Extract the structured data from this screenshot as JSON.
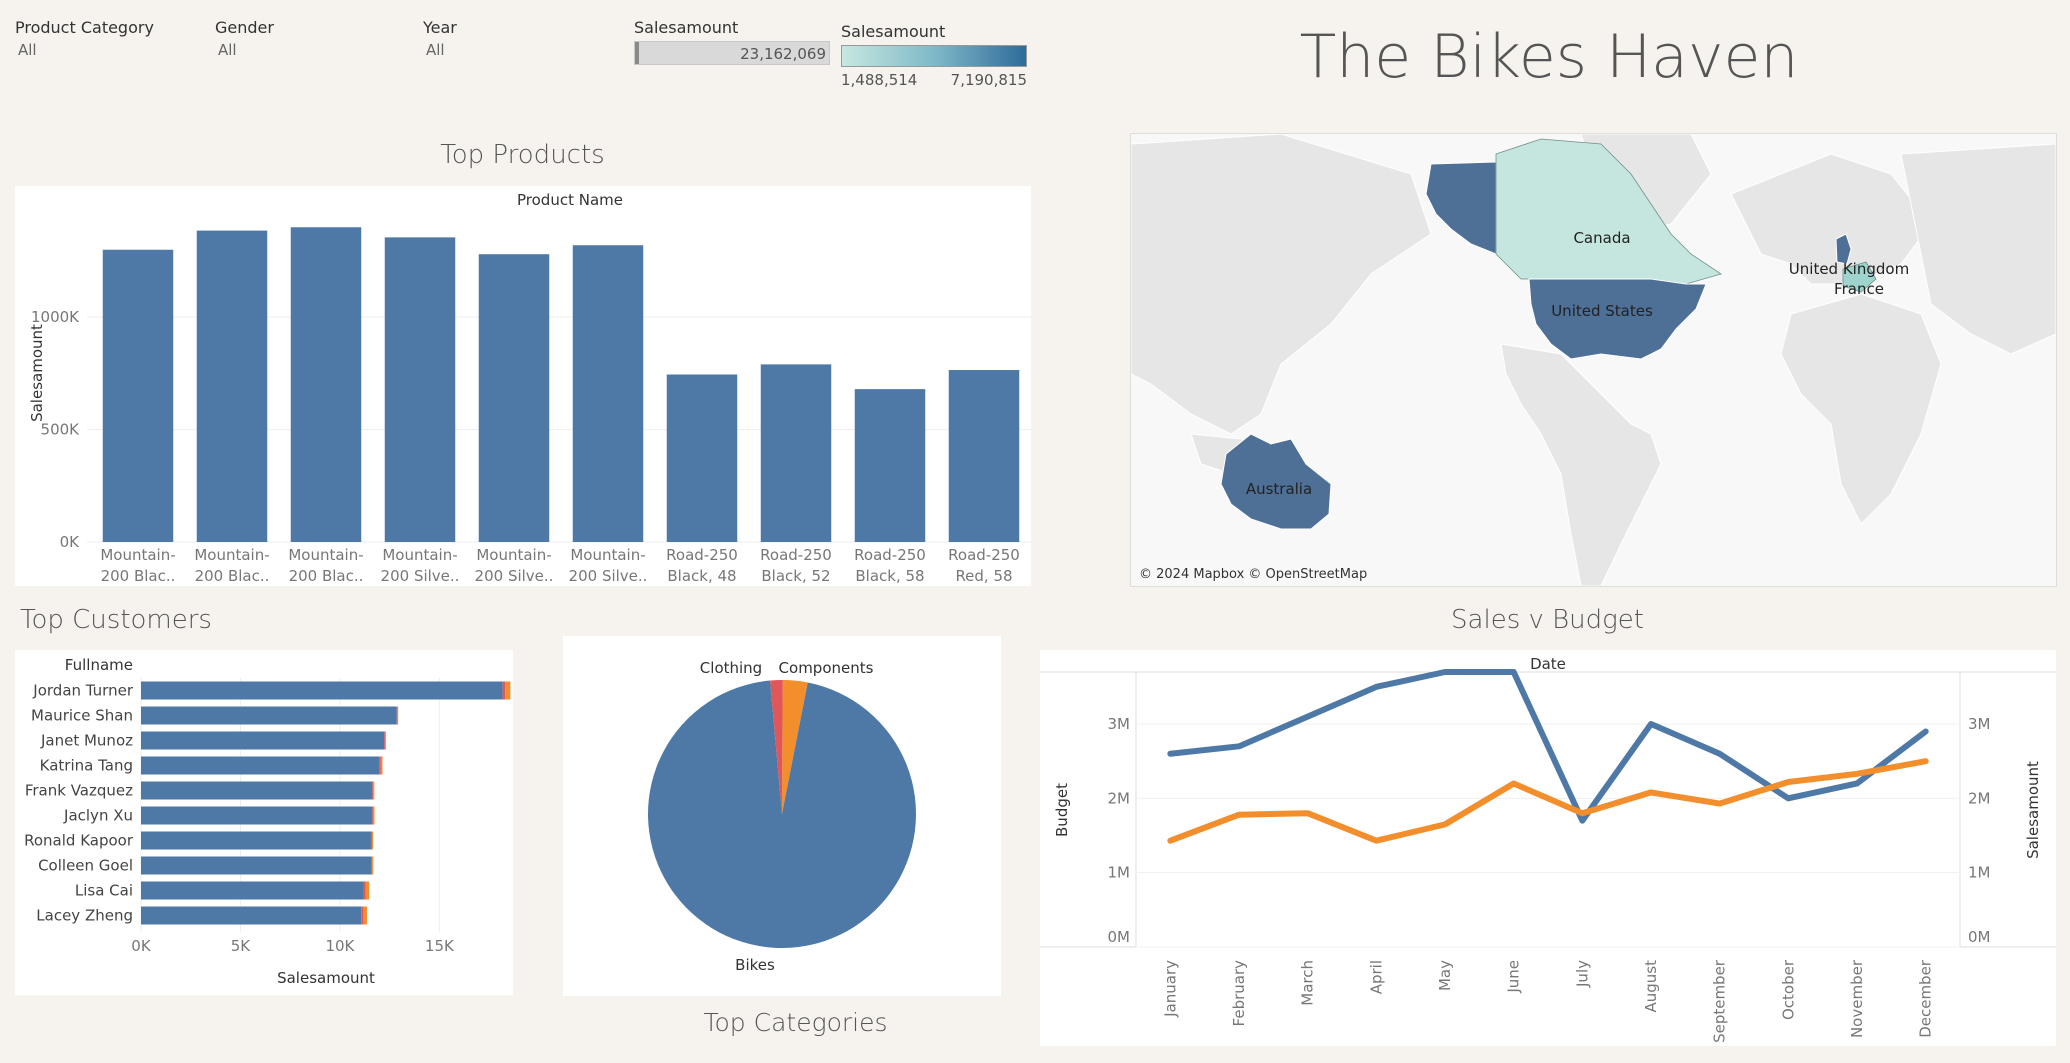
{
  "filters": [
    {
      "label": "Product Category",
      "value": "All"
    },
    {
      "label": "Gender",
      "value": "All"
    },
    {
      "label": "Year",
      "value": "All"
    }
  ],
  "sales_filter": {
    "label": "Salesamount",
    "value": "23,162,069",
    "fill_fraction": 0.02
  },
  "color_legend": {
    "label": "Salesamount",
    "min": "1,488,514",
    "max": "7,190,815",
    "colors": [
      "#c7e7e0",
      "#2f6b9a"
    ]
  },
  "title": "The Bikes Haven",
  "colors": {
    "blue": "#4e79a7",
    "orange": "#f28e2b",
    "red": "#e15759",
    "teal": "#c5e6de",
    "lightgray": "#e6e6e6",
    "bg": "#f6f2ee"
  },
  "map": {
    "countries": [
      "Canada",
      "United States",
      "United Kingdom",
      "France",
      "Australia"
    ],
    "attribution": "© 2024 Mapbox © OpenStreetMap"
  },
  "sections": {
    "top_products": "Top Products",
    "top_customers": "Top Customers",
    "top_categories": "Top Categories",
    "sales_budget": "Sales v Budget"
  },
  "chart_data": [
    {
      "type": "bar",
      "title": "Top Products",
      "header": "Product Name",
      "ylabel": "Salesamount",
      "ylim": [
        0,
        1450000
      ],
      "yticks": [
        "0K",
        "500K",
        "1000K"
      ],
      "categories": [
        [
          "Mountain-",
          "200 Blac.."
        ],
        [
          "Mountain-",
          "200 Blac.."
        ],
        [
          "Mountain-",
          "200 Blac.."
        ],
        [
          "Mountain-",
          "200 Silve.."
        ],
        [
          "Mountain-",
          "200 Silve.."
        ],
        [
          "Mountain-",
          "200 Silve.."
        ],
        [
          "Road-250",
          "Black, 48"
        ],
        [
          "Road-250",
          "Black, 52"
        ],
        [
          "Road-250",
          "Black, 58"
        ],
        [
          "Road-250",
          "Red, 58"
        ]
      ],
      "values": [
        1300000,
        1385000,
        1400000,
        1355000,
        1280000,
        1320000,
        745000,
        790000,
        680000,
        765000
      ]
    },
    {
      "type": "bar",
      "orientation": "horizontal",
      "title": "Top Customers",
      "header": "Fullname",
      "xlabel": "Salesamount",
      "xticks": [
        "0K",
        "5K",
        "10K",
        "15K"
      ],
      "xlim": [
        0,
        18500
      ],
      "categories": [
        "Jordan Turner",
        "Maurice Shan",
        "Janet Munoz",
        "Katrina Tang",
        "Frank Vazquez",
        "Jaclyn Xu",
        "Ronald Kapoor",
        "Colleen Goel",
        "Lisa Cai",
        "Lacey Zheng"
      ],
      "series": [
        {
          "name": "Bikes",
          "values": [
            18180,
            12860,
            12230,
            11970,
            11630,
            11630,
            11560,
            11580,
            11160,
            11070
          ]
        },
        {
          "name": "Clothing",
          "values": [
            130,
            30,
            50,
            90,
            40,
            50,
            50,
            40,
            130,
            110
          ]
        },
        {
          "name": "Components",
          "values": [
            260,
            40,
            40,
            80,
            60,
            60,
            60,
            60,
            180,
            180
          ]
        }
      ]
    },
    {
      "type": "pie",
      "title": "Top Categories",
      "categories": [
        "Bikes",
        "Clothing",
        "Components"
      ],
      "values": [
        95.5,
        1.5,
        3.0
      ]
    },
    {
      "type": "line",
      "title": "Sales v Budget",
      "header": "Date",
      "x": [
        "January",
        "February",
        "March",
        "April",
        "May",
        "June",
        "July",
        "August",
        "September",
        "October",
        "November",
        "December"
      ],
      "ylabel_left": "Budget",
      "ylabel_right": "Salesamount",
      "ylim": [
        0,
        3700000
      ],
      "yticks": [
        "0M",
        "1M",
        "2M",
        "3M"
      ],
      "series": [
        {
          "name": "Budget",
          "values": [
            2600000,
            2700000,
            3100000,
            3500000,
            3700000,
            3700000,
            1700000,
            3000000,
            2600000,
            2000000,
            2200000,
            2900000
          ]
        },
        {
          "name": "Salesamount",
          "values": [
            1430000,
            1780000,
            1800000,
            1430000,
            1650000,
            2200000,
            1800000,
            2080000,
            1930000,
            2220000,
            2330000,
            2500000
          ]
        }
      ]
    }
  ]
}
